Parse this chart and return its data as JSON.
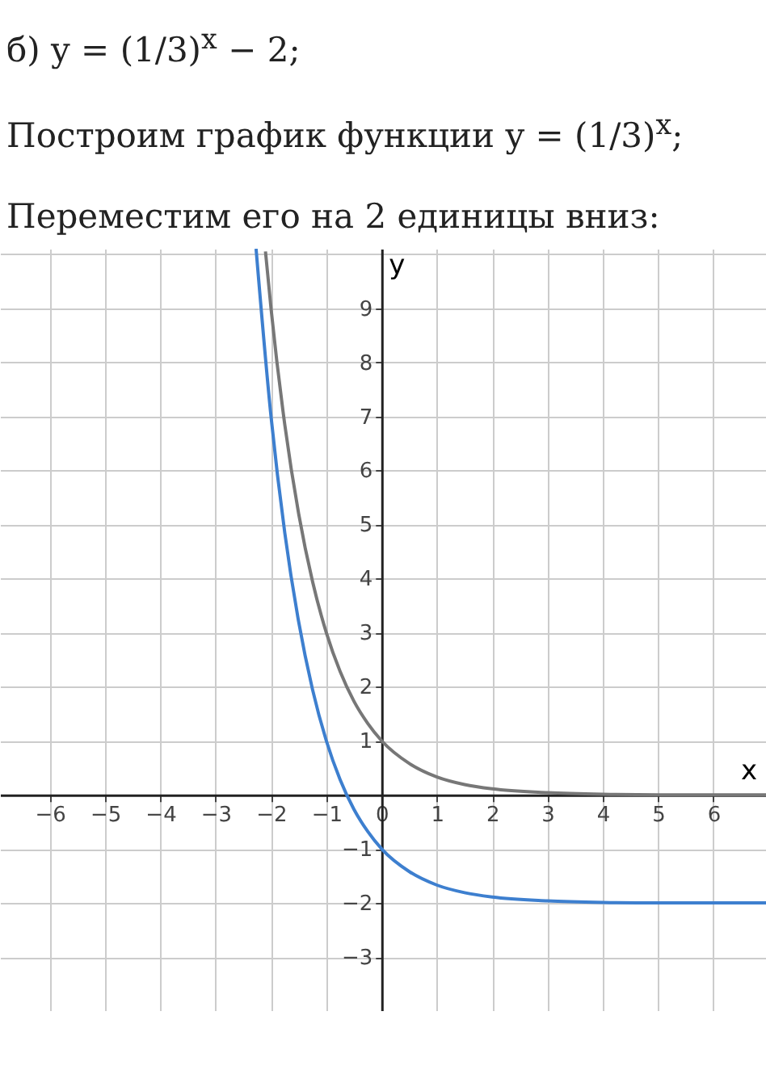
{
  "chart_data": {
    "type": "line",
    "title": "б) y = (1/3)$^{x}$ − 2;",
    "annotations": [
      "Построим график функции y = (1/3)$^{x}$;",
      "Переместим его на 2 единицы вниз:"
    ],
    "xlabel": "x",
    "ylabel": "y",
    "xlim": [
      -6.9,
      6.95
    ],
    "ylim": [
      -4,
      10.1
    ],
    "xticks": [
      -6,
      -5,
      -4,
      -3,
      -2,
      -1,
      0,
      1,
      2,
      3,
      4,
      5,
      6
    ],
    "yticks": [
      -3,
      -2,
      -1,
      1,
      2,
      3,
      4,
      5,
      6,
      7,
      8,
      9
    ],
    "grid": true,
    "marker": "none",
    "line_style": "solid",
    "series": [
      {
        "color": "#777777",
        "x": [
          -2.1,
          -2,
          -1.75,
          -1.5,
          -1.25,
          -1,
          -0.75,
          -0.5,
          -0.25,
          0,
          0.5,
          1,
          1.5,
          2,
          3,
          4,
          5,
          6.95
        ],
        "values": [
          10.05,
          9,
          6.84,
          5.2,
          3.95,
          3,
          2.28,
          1.73,
          1.32,
          1,
          0.58,
          0.33,
          0.19,
          0.11,
          0.04,
          0.01,
          0,
          0
        ]
      },
      {
        "color": "#3d7fcf",
        "x": [
          -2.27,
          -2,
          -1.75,
          -1.5,
          -1.25,
          -1,
          -0.75,
          -0.5,
          -0.25,
          0,
          0.5,
          1,
          1.5,
          2,
          3,
          4,
          5,
          6.95
        ],
        "values": [
          10.1,
          7,
          4.84,
          3.2,
          1.95,
          1,
          0.28,
          -0.27,
          -0.68,
          -1,
          -1.42,
          -1.67,
          -1.81,
          -1.89,
          -1.96,
          -1.99,
          -2,
          -2
        ]
      }
    ]
  }
}
